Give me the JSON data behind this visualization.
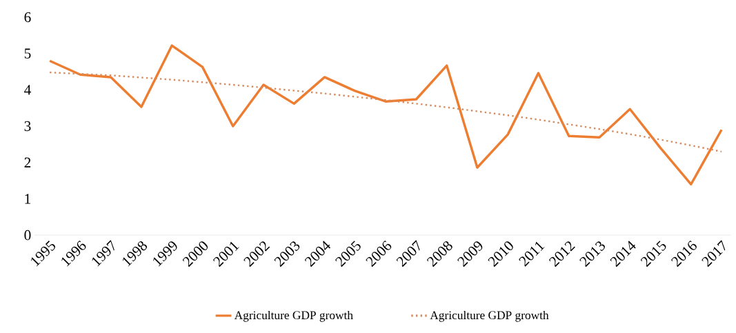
{
  "chart_data": {
    "type": "line",
    "categories": [
      "1995",
      "1996",
      "1997",
      "1998",
      "1999",
      "2000",
      "2001",
      "2002",
      "2003",
      "2004",
      "2005",
      "2006",
      "2007",
      "2008",
      "2009",
      "2010",
      "2011",
      "2012",
      "2013",
      "2014",
      "2015",
      "2016",
      "2017"
    ],
    "series": [
      {
        "name": "Agriculture GDP growth",
        "color": "#ed7d31",
        "line_style": "solid",
        "values": [
          4.8,
          4.42,
          4.35,
          3.53,
          5.22,
          4.63,
          3.0,
          4.14,
          3.62,
          4.35,
          3.97,
          3.68,
          3.74,
          4.67,
          1.86,
          2.77,
          4.46,
          2.73,
          2.69,
          3.47,
          2.4,
          1.4,
          2.9
        ]
      },
      {
        "name": "Agriculture GDP growth",
        "color": "#d58b5e",
        "line_style": "dotted",
        "values": [
          4.48,
          4.44,
          4.4,
          4.34,
          4.28,
          4.21,
          4.14,
          4.06,
          3.98,
          3.9,
          3.81,
          3.72,
          3.62,
          3.52,
          3.41,
          3.3,
          3.18,
          3.05,
          2.92,
          2.78,
          2.63,
          2.47,
          2.3
        ]
      }
    ],
    "ylim": [
      0,
      6
    ],
    "yticks": [
      0,
      1,
      2,
      3,
      4,
      5,
      6
    ],
    "grid": false,
    "legend": "bottom",
    "marker": "none"
  }
}
